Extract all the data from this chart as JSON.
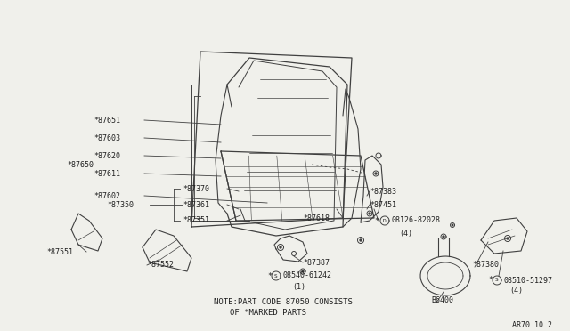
{
  "bg_color": "#f0f0eb",
  "line_color": "#404040",
  "text_color": "#202020",
  "fig_width": 6.4,
  "fig_height": 3.72,
  "dpi": 100,
  "note_line1": "NOTE:PART CODE 87050 CONSISTS",
  "note_line2": "OF *MARKED PARTS",
  "ref_code": "AR70 10 2"
}
